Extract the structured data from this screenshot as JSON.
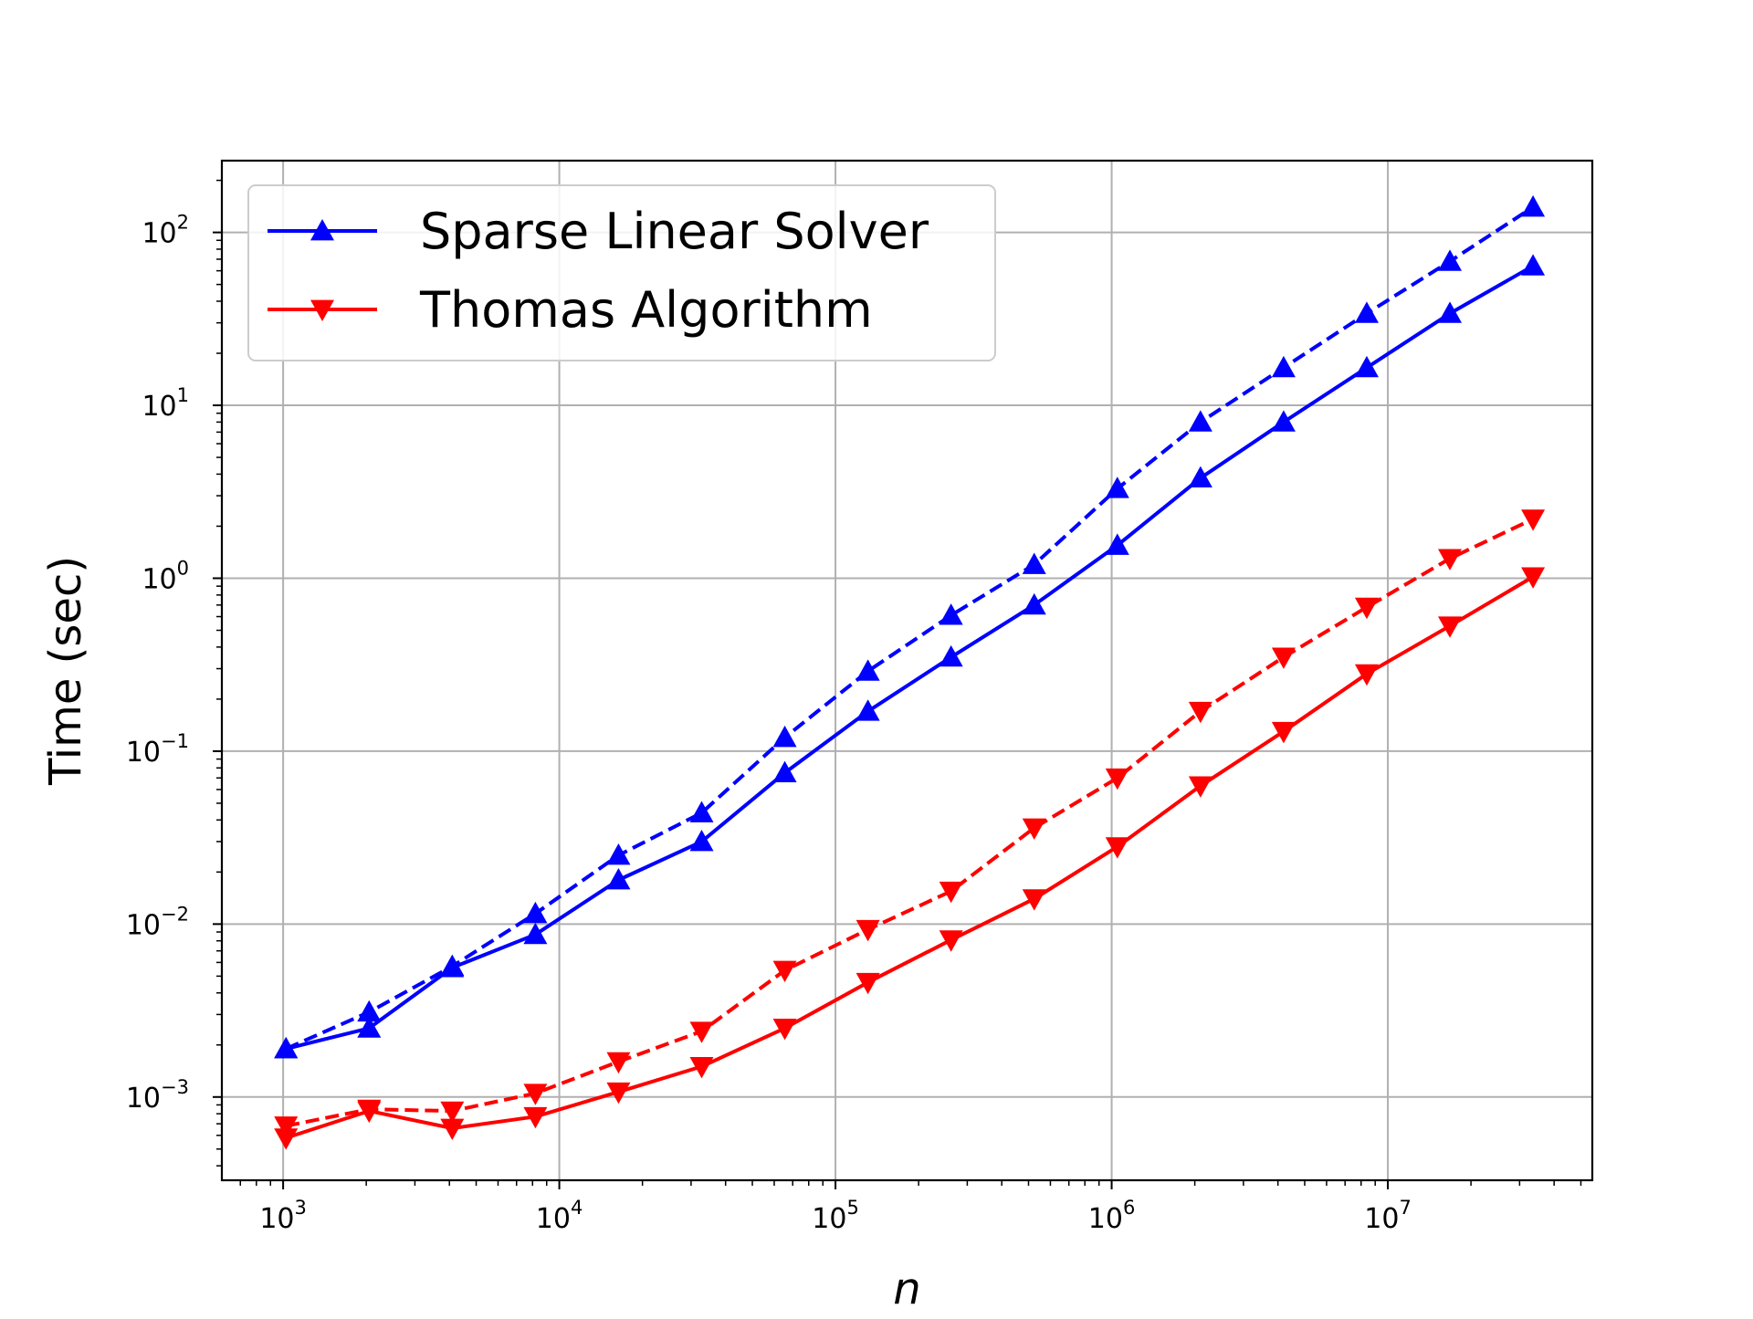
{
  "chart_data": {
    "type": "line",
    "title": "",
    "xlabel": "n",
    "ylabel": "Time (sec)",
    "xscale": "log",
    "yscale": "log",
    "grid": true,
    "legend_position": "top-left",
    "xlim": [
      600,
      55000000
    ],
    "ylim": [
      0.00033,
      260
    ],
    "x": [
      1024,
      2048,
      4096,
      8192,
      16384,
      32768,
      65536,
      131072,
      262144,
      524288,
      1048576,
      2097152,
      4194304,
      8388608,
      16777216,
      33554432
    ],
    "x_ticks": [
      {
        "value": 1000,
        "base": "10",
        "exp": "3"
      },
      {
        "value": 10000,
        "base": "10",
        "exp": "4"
      },
      {
        "value": 100000,
        "base": "10",
        "exp": "5"
      },
      {
        "value": 1000000,
        "base": "10",
        "exp": "6"
      },
      {
        "value": 10000000,
        "base": "10",
        "exp": "7"
      }
    ],
    "y_ticks": [
      {
        "value": 0.001,
        "base": "10",
        "exp": "−3"
      },
      {
        "value": 0.01,
        "base": "10",
        "exp": "−2"
      },
      {
        "value": 0.1,
        "base": "10",
        "exp": "−1"
      },
      {
        "value": 1,
        "base": "10",
        "exp": "0"
      },
      {
        "value": 10,
        "base": "10",
        "exp": "1"
      },
      {
        "value": 100,
        "base": "10",
        "exp": "2"
      }
    ],
    "legend": [
      {
        "label": "Sparse Linear Solver",
        "color": "#0000ff",
        "marker": "triangle-up"
      },
      {
        "label": "Thomas Algorithm",
        "color": "#ff0000",
        "marker": "triangle-down"
      }
    ],
    "series": [
      {
        "color": "#0000ff",
        "marker": "triangle-up",
        "linestyle": "dashed",
        "values": [
          0.0019,
          0.0031,
          0.0057,
          0.0115,
          0.025,
          0.044,
          0.12,
          0.29,
          0.61,
          1.2,
          3.3,
          8.0,
          16.5,
          34,
          68,
          140
        ]
      },
      {
        "color": "#0000ff",
        "marker": "triangle-up",
        "linestyle": "solid",
        "values": [
          0.0019,
          0.0025,
          0.0056,
          0.0087,
          0.018,
          0.03,
          0.075,
          0.17,
          0.35,
          0.7,
          1.55,
          3.8,
          8.0,
          16.5,
          34,
          64
        ]
      },
      {
        "color": "#ff0000",
        "marker": "triangle-down",
        "linestyle": "dashed",
        "values": [
          0.00068,
          0.00085,
          0.00083,
          0.00105,
          0.0016,
          0.0024,
          0.0054,
          0.0093,
          0.0155,
          0.036,
          0.07,
          0.17,
          0.35,
          0.68,
          1.3,
          2.2
        ]
      },
      {
        "color": "#ff0000",
        "marker": "triangle-down",
        "linestyle": "solid",
        "values": [
          0.00058,
          0.00083,
          0.00066,
          0.00077,
          0.00107,
          0.0015,
          0.0025,
          0.0046,
          0.0081,
          0.014,
          0.028,
          0.063,
          0.13,
          0.28,
          0.53,
          1.02
        ]
      }
    ]
  }
}
